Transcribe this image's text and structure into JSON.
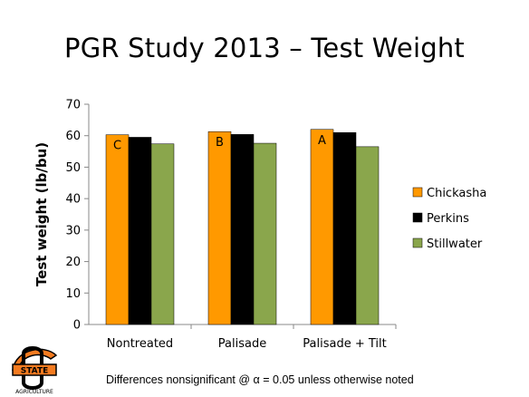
{
  "slide": {
    "title": "PGR Study 2013 – Test Weight",
    "footnote": "Differences nonsignificant @ α = 0.05 unless otherwise noted",
    "logo": {
      "top_text": "STATE",
      "bottom_text": "AGRICULTURE",
      "colors": {
        "orange": "#f47b20",
        "black": "#000000"
      }
    }
  },
  "chart_data": {
    "type": "bar",
    "title": "",
    "xlabel": "",
    "ylabel": "Test weight (lb/bu)",
    "ylim": [
      0,
      70
    ],
    "yticks": [
      0,
      10,
      20,
      30,
      40,
      50,
      60,
      70
    ],
    "categories": [
      "Nontreated",
      "Palisade",
      "Palisade + Tilt"
    ],
    "series": [
      {
        "name": "Chickasha",
        "color": "#ff9900",
        "values": [
          60.3,
          61.3,
          62.0
        ]
      },
      {
        "name": "Perkins",
        "color": "#000000",
        "values": [
          59.5,
          60.4,
          61.0
        ]
      },
      {
        "name": "Stillwater",
        "color": "#8aa64c",
        "values": [
          57.4,
          57.6,
          56.5
        ]
      }
    ],
    "significance_labels": [
      "C",
      "B",
      "A"
    ],
    "grid": false,
    "legend_position": "right"
  }
}
